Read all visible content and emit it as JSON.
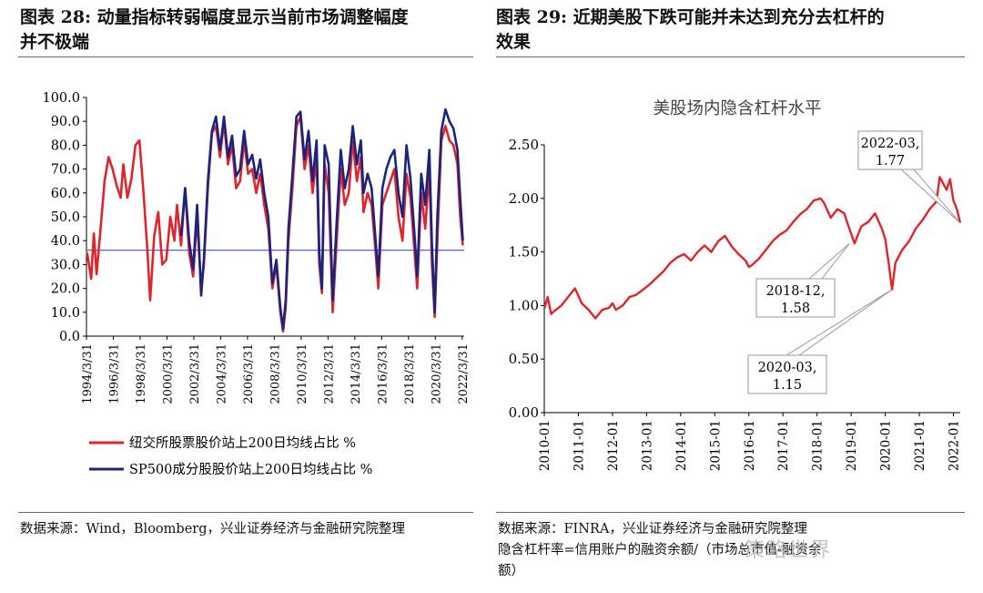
{
  "left_panel": {
    "title_line1": "图表 28:  动量指标转弱幅度显示当前市场调整幅度",
    "title_line2": "并不极端",
    "source": "数据来源：Wind，Bloomberg，兴业证券经济与金融研究院整理"
  },
  "right_panel": {
    "title_line1": "图表 29:  近期美股下跌可能并未达到充分去杠杆的",
    "title_line2": "效果",
    "source_line1": "数据来源：FINRA，兴业证券经济与金融研究院整理",
    "source_line2": "隐含杠杆率=信用账户的融资余额/（市场总市值-融资余",
    "source_line3": "额）"
  },
  "watermark": "策略世界",
  "colors": {
    "red": "#e0242b",
    "blue": "#1a237e",
    "ref": "#3b56c4",
    "axis": "#000000"
  },
  "chart_data": [
    {
      "type": "line",
      "ylim": [
        0,
        100
      ],
      "yticks": [
        "0.0",
        "10.0",
        "20.0",
        "30.0",
        "40.0",
        "50.0",
        "60.0",
        "70.0",
        "80.0",
        "90.0",
        "100.0"
      ],
      "xticks": [
        "1994/3/31",
        "1996/3/31",
        "1998/3/31",
        "2000/3/31",
        "2002/3/31",
        "2004/3/31",
        "2006/3/31",
        "2008/3/31",
        "2010/3/31",
        "2012/3/31",
        "2014/3/31",
        "2016/3/31",
        "2018/3/31",
        "2020/3/31",
        "2022/3/31"
      ],
      "xlim": [
        1994.25,
        2022.4
      ],
      "reference_line": 36,
      "legend": "bottom",
      "series": [
        {
          "name": "纽交所股票股价站上200日均线占比 %",
          "color": "red",
          "x": [
            1994.3,
            1994.6,
            1994.8,
            1995.0,
            1995.3,
            1995.6,
            1995.9,
            1996.2,
            1996.5,
            1996.8,
            1997.0,
            1997.3,
            1997.6,
            1997.9,
            1998.2,
            1998.5,
            1998.8,
            1999.0,
            1999.3,
            1999.6,
            1999.9,
            2000.2,
            2000.5,
            2000.8,
            2001.0,
            2001.3,
            2001.6,
            2001.9,
            2002.2,
            2002.5,
            2002.8,
            2003.0,
            2003.3,
            2003.6,
            2003.9,
            2004.2,
            2004.5,
            2004.8,
            2005.1,
            2005.4,
            2005.7,
            2006.0,
            2006.3,
            2006.6,
            2006.9,
            2007.2,
            2007.5,
            2007.8,
            2008.1,
            2008.4,
            2008.7,
            2008.9,
            2009.1,
            2009.3,
            2009.6,
            2009.9,
            2010.2,
            2010.5,
            2010.8,
            2011.1,
            2011.4,
            2011.6,
            2011.8,
            2012.0,
            2012.3,
            2012.6,
            2012.9,
            2013.2,
            2013.5,
            2013.8,
            2014.1,
            2014.4,
            2014.7,
            2014.9,
            2015.2,
            2015.5,
            2015.8,
            2016.0,
            2016.3,
            2016.6,
            2016.9,
            2017.2,
            2017.5,
            2017.8,
            2018.1,
            2018.4,
            2018.7,
            2018.9,
            2019.2,
            2019.5,
            2019.8,
            2020.0,
            2020.2,
            2020.4,
            2020.7,
            2021.0,
            2021.3,
            2021.6,
            2021.9,
            2022.1,
            2022.3
          ],
          "values": [
            35,
            24,
            43,
            26,
            45,
            65,
            75,
            70,
            63,
            58,
            72,
            58,
            66,
            80,
            82,
            60,
            35,
            15,
            42,
            52,
            30,
            32,
            50,
            40,
            55,
            38,
            62,
            35,
            25,
            50,
            20,
            30,
            62,
            85,
            88,
            75,
            90,
            72,
            80,
            62,
            65,
            82,
            68,
            70,
            60,
            68,
            55,
            45,
            20,
            30,
            10,
            2,
            12,
            40,
            62,
            88,
            92,
            70,
            80,
            60,
            75,
            30,
            18,
            72,
            60,
            10,
            40,
            70,
            55,
            60,
            82,
            65,
            75,
            52,
            60,
            55,
            35,
            20,
            55,
            60,
            65,
            70,
            50,
            40,
            68,
            58,
            35,
            20,
            60,
            45,
            70,
            30,
            8,
            40,
            82,
            88,
            82,
            80,
            72,
            50,
            38
          ]
        },
        {
          "name": "SP500成分股股价站上200日均线占比 %",
          "color": "blue",
          "x": [
            2001.3,
            2001.6,
            2001.9,
            2002.2,
            2002.5,
            2002.8,
            2003.0,
            2003.3,
            2003.6,
            2003.9,
            2004.2,
            2004.5,
            2004.8,
            2005.1,
            2005.4,
            2005.7,
            2006.0,
            2006.3,
            2006.6,
            2006.9,
            2007.2,
            2007.5,
            2007.8,
            2008.1,
            2008.4,
            2008.7,
            2008.9,
            2009.1,
            2009.3,
            2009.6,
            2009.9,
            2010.2,
            2010.5,
            2010.8,
            2011.1,
            2011.4,
            2011.6,
            2011.8,
            2012.0,
            2012.3,
            2012.6,
            2012.9,
            2013.2,
            2013.5,
            2013.8,
            2014.1,
            2014.4,
            2014.7,
            2014.9,
            2015.2,
            2015.5,
            2015.8,
            2016.0,
            2016.3,
            2016.6,
            2016.9,
            2017.2,
            2017.5,
            2017.8,
            2018.1,
            2018.4,
            2018.7,
            2018.9,
            2019.2,
            2019.5,
            2019.8,
            2020.0,
            2020.2,
            2020.4,
            2020.7,
            2021.0,
            2021.3,
            2021.6,
            2021.9,
            2022.1,
            2022.3
          ],
          "values": [
            42,
            62,
            40,
            28,
            55,
            17,
            32,
            65,
            86,
            92,
            78,
            92,
            75,
            84,
            67,
            70,
            86,
            72,
            76,
            66,
            74,
            60,
            50,
            22,
            32,
            12,
            3,
            15,
            45,
            68,
            92,
            94,
            74,
            86,
            65,
            82,
            35,
            20,
            80,
            72,
            15,
            48,
            78,
            62,
            70,
            88,
            72,
            82,
            60,
            68,
            62,
            40,
            25,
            62,
            70,
            75,
            78,
            60,
            50,
            80,
            66,
            42,
            25,
            68,
            55,
            78,
            38,
            10,
            50,
            86,
            95,
            90,
            87,
            78,
            58,
            40
          ]
        }
      ]
    },
    {
      "type": "line",
      "title": "美股场内隐含杠杆水平",
      "ylim": [
        0,
        2.5
      ],
      "yticks": [
        "0.00",
        "0.50",
        "1.00",
        "1.50",
        "2.00",
        "2.50"
      ],
      "xticks": [
        "2010-01",
        "2011-01",
        "2012-01",
        "2013-01",
        "2014-01",
        "2015-01",
        "2016-01",
        "2017-01",
        "2018-01",
        "2019-01",
        "2020-01",
        "2021-01",
        "2022-01"
      ],
      "xlim": [
        2010.0,
        2022.2
      ],
      "series": [
        {
          "name": "隐含杠杆水平",
          "color": "red",
          "x": [
            2010.0,
            2010.1,
            2010.2,
            2010.3,
            2010.5,
            2010.7,
            2010.9,
            2011.1,
            2011.3,
            2011.5,
            2011.7,
            2011.9,
            2012.0,
            2012.1,
            2012.3,
            2012.5,
            2012.7,
            2012.9,
            2013.1,
            2013.3,
            2013.5,
            2013.7,
            2013.9,
            2014.1,
            2014.3,
            2014.5,
            2014.7,
            2014.9,
            2015.1,
            2015.3,
            2015.5,
            2015.7,
            2015.9,
            2016.0,
            2016.1,
            2016.3,
            2016.5,
            2016.7,
            2016.9,
            2017.1,
            2017.3,
            2017.5,
            2017.7,
            2017.9,
            2018.1,
            2018.2,
            2018.4,
            2018.6,
            2018.8,
            2018.9,
            2019.1,
            2019.3,
            2019.5,
            2019.7,
            2019.9,
            2020.0,
            2020.1,
            2020.2,
            2020.3,
            2020.5,
            2020.7,
            2020.9,
            2021.1,
            2021.3,
            2021.5,
            2021.6,
            2021.8,
            2021.9,
            2022.0,
            2022.1,
            2022.2
          ],
          "values": [
            0.97,
            1.08,
            0.92,
            0.95,
            1.0,
            1.08,
            1.16,
            1.02,
            0.96,
            0.88,
            0.96,
            0.98,
            1.02,
            0.96,
            1.0,
            1.08,
            1.1,
            1.15,
            1.2,
            1.26,
            1.32,
            1.4,
            1.45,
            1.48,
            1.42,
            1.5,
            1.56,
            1.5,
            1.6,
            1.65,
            1.55,
            1.48,
            1.42,
            1.36,
            1.38,
            1.44,
            1.52,
            1.6,
            1.66,
            1.7,
            1.78,
            1.85,
            1.9,
            1.98,
            2.0,
            1.96,
            1.82,
            1.9,
            1.86,
            1.76,
            1.58,
            1.74,
            1.78,
            1.86,
            1.72,
            1.62,
            1.4,
            1.15,
            1.4,
            1.52,
            1.6,
            1.72,
            1.8,
            1.9,
            1.97,
            2.2,
            2.08,
            2.18,
            1.98,
            1.9,
            1.77
          ]
        }
      ],
      "annotations": [
        {
          "label": "2022-03,",
          "value": "1.77"
        },
        {
          "label": "2018-12,",
          "value": "1.58"
        },
        {
          "label": "2020-03,",
          "value": "1.15"
        }
      ]
    }
  ]
}
